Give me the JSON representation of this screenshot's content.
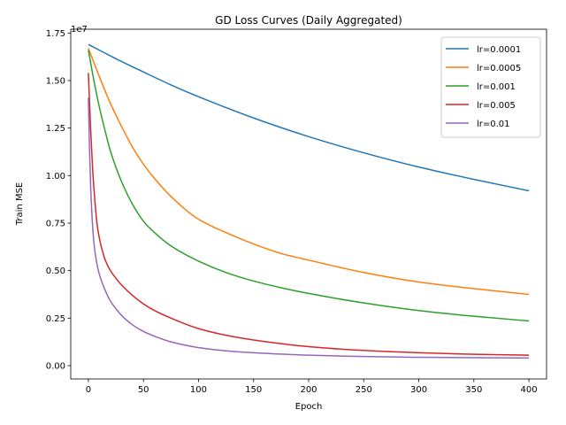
{
  "chart_data": {
    "type": "line",
    "title": "GD Loss Curves (Daily Aggregated)",
    "xlabel": "Epoch",
    "ylabel": "Train MSE",
    "y_offset_label": "1e7",
    "xlim": [
      -16,
      416
    ],
    "ylim": [
      -0.07,
      1.77
    ],
    "x_ticks": [
      0,
      50,
      100,
      150,
      200,
      250,
      300,
      350,
      400
    ],
    "y_ticks": [
      0.0,
      0.25,
      0.5,
      0.75,
      1.0,
      1.25,
      1.5,
      1.75
    ],
    "y_tick_labels": [
      "0.00",
      "0.25",
      "0.50",
      "0.75",
      "1.00",
      "1.25",
      "1.50",
      "1.75"
    ],
    "grid": false,
    "legend_position": "top-right",
    "series": [
      {
        "name": "lr=0.0001",
        "color": "#1f77b4",
        "x": [
          0,
          25,
          50,
          75,
          100,
          150,
          200,
          250,
          300,
          350,
          400
        ],
        "y": [
          1.69,
          1.615,
          1.545,
          1.477,
          1.415,
          1.303,
          1.205,
          1.12,
          1.045,
          0.98,
          0.92
        ]
      },
      {
        "name": "lr=0.0005",
        "color": "#ff7f0e",
        "x": [
          0,
          10,
          20,
          30,
          40,
          50,
          60,
          75,
          100,
          125,
          150,
          175,
          200,
          250,
          300,
          350,
          400
        ],
        "y": [
          1.67,
          1.52,
          1.38,
          1.26,
          1.15,
          1.06,
          0.985,
          0.89,
          0.77,
          0.7,
          0.64,
          0.59,
          0.555,
          0.49,
          0.44,
          0.405,
          0.375
        ]
      },
      {
        "name": "lr=0.001",
        "color": "#2ca02c",
        "x": [
          0,
          5,
          10,
          15,
          20,
          30,
          40,
          50,
          60,
          75,
          100,
          125,
          150,
          175,
          200,
          250,
          300,
          350,
          400
        ],
        "y": [
          1.66,
          1.5,
          1.36,
          1.24,
          1.13,
          0.97,
          0.85,
          0.76,
          0.7,
          0.63,
          0.55,
          0.49,
          0.445,
          0.41,
          0.38,
          0.33,
          0.29,
          0.26,
          0.235
        ]
      },
      {
        "name": "lr=0.005",
        "color": "#d62728",
        "x": [
          0,
          2,
          4,
          6,
          8,
          10,
          12,
          15,
          20,
          25,
          30,
          40,
          50,
          60,
          75,
          100,
          125,
          150,
          200,
          250,
          300,
          350,
          400
        ],
        "y": [
          1.54,
          1.25,
          1.02,
          0.86,
          0.74,
          0.67,
          0.62,
          0.56,
          0.5,
          0.46,
          0.425,
          0.37,
          0.325,
          0.29,
          0.25,
          0.195,
          0.16,
          0.135,
          0.1,
          0.08,
          0.068,
          0.06,
          0.055
        ]
      },
      {
        "name": "lr=0.01",
        "color": "#9467bd",
        "x": [
          0,
          1,
          2,
          3,
          4,
          5,
          7,
          10,
          15,
          20,
          25,
          30,
          40,
          50,
          60,
          75,
          100,
          125,
          150,
          200,
          250,
          300,
          350,
          400
        ],
        "y": [
          1.41,
          1.15,
          0.95,
          0.82,
          0.72,
          0.65,
          0.56,
          0.48,
          0.4,
          0.34,
          0.3,
          0.265,
          0.215,
          0.18,
          0.155,
          0.125,
          0.095,
          0.078,
          0.068,
          0.055,
          0.048,
          0.044,
          0.042,
          0.04
        ]
      }
    ]
  }
}
